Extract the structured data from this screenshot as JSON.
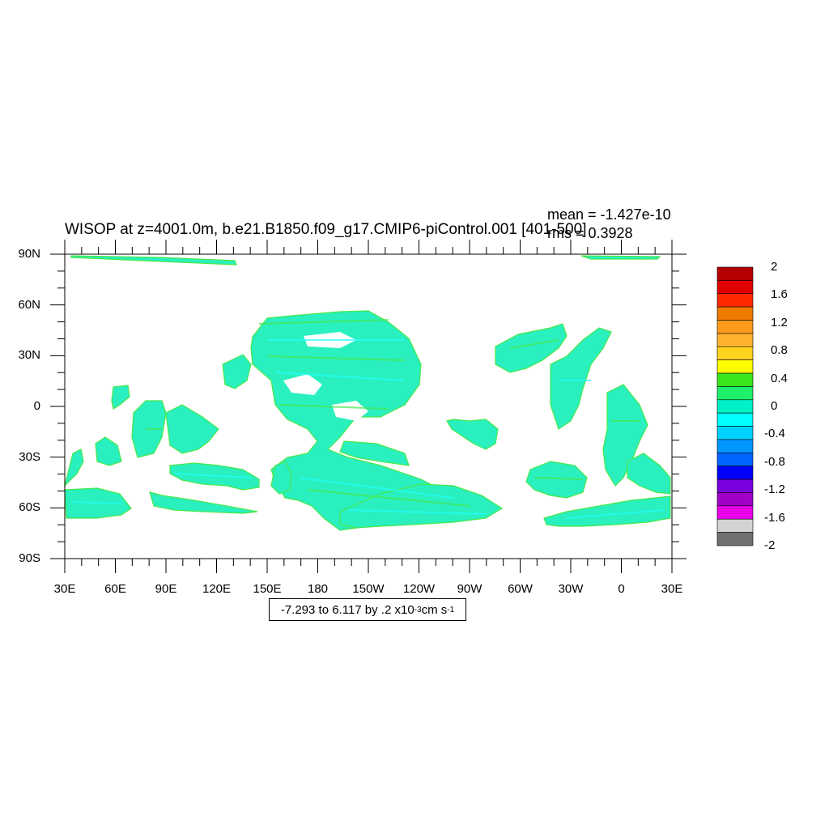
{
  "title": "WISOP at z=4001.0m, b.e21.B1850.f09_g17.CMIP6-piControl.001 [401-500]",
  "stats": {
    "mean": "mean = -1.427e-10",
    "rms": "rms = 0.3928"
  },
  "lat_labels": [
    "90N",
    "60N",
    "30N",
    "0",
    "30S",
    "60S",
    "90S"
  ],
  "lon_labels": [
    "30E",
    "60E",
    "90E",
    "120E",
    "150E",
    "180",
    "150W",
    "120W",
    "90W",
    "60W",
    "30W",
    "0",
    "30E"
  ],
  "colorbar": {
    "labels": [
      "2",
      "1.6",
      "1.2",
      "0.8",
      "0.4",
      "0",
      "-0.4",
      "-0.8",
      "-1.2",
      "-1.6",
      "-2"
    ],
    "colors": [
      "#b40000",
      "#e00000",
      "#ff2a00",
      "#ee7a00",
      "#ff9a1a",
      "#ffb22e",
      "#ffd21e",
      "#ffff00",
      "#39e51b",
      "#1ef06a",
      "#00f0c8",
      "#00ffff",
      "#00d2ff",
      "#0096ff",
      "#0064ff",
      "#0000ff",
      "#7a00e0",
      "#a000c8",
      "#e800e8",
      "#d2d2d2",
      "#707070"
    ]
  },
  "contour_info": {
    "prefix": "-7.293 to 6.117 by .2 x10",
    "exp1": "-3",
    "unit": " cm s",
    "exp2": "-1"
  },
  "map_colors": {
    "ocean": "#2af0bf",
    "positive": "#46e84a",
    "negative": "#22ffff",
    "land": "#ffffff"
  }
}
